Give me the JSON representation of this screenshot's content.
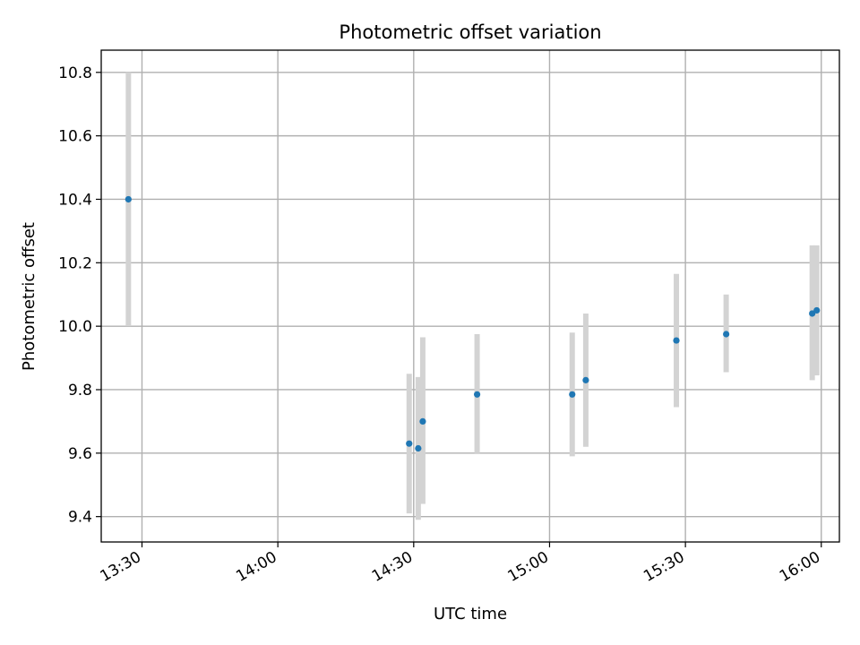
{
  "chart_data": {
    "type": "scatter",
    "title": "Photometric offset variation",
    "xlabel": "UTC time",
    "ylabel": "Photometric offset",
    "grid": true,
    "x_axis_type": "time",
    "xlim": [
      "13:21",
      "16:04"
    ],
    "ylim": [
      9.32,
      10.87
    ],
    "x_ticks": [
      "13:30",
      "14:00",
      "14:30",
      "15:00",
      "15:30",
      "16:00"
    ],
    "y_ticks": [
      "9.4",
      "9.6",
      "9.8",
      "10.0",
      "10.2",
      "10.4",
      "10.6",
      "10.8"
    ],
    "series": [
      {
        "marker_color": "#1f77b4",
        "errorbar_color": "#d3d3d3",
        "points": [
          {
            "x": "13:27",
            "y": 10.4,
            "y_low": 10.0,
            "y_high": 10.8
          },
          {
            "x": "14:29",
            "y": 9.63,
            "y_low": 9.41,
            "y_high": 9.85
          },
          {
            "x": "14:31",
            "y": 9.615,
            "y_low": 9.39,
            "y_high": 9.84
          },
          {
            "x": "14:32",
            "y": 9.7,
            "y_low": 9.44,
            "y_high": 9.965
          },
          {
            "x": "14:44",
            "y": 9.785,
            "y_low": 9.6,
            "y_high": 9.975
          },
          {
            "x": "15:05",
            "y": 9.785,
            "y_low": 9.59,
            "y_high": 9.98
          },
          {
            "x": "15:08",
            "y": 9.83,
            "y_low": 9.62,
            "y_high": 10.04
          },
          {
            "x": "15:28",
            "y": 9.955,
            "y_low": 9.745,
            "y_high": 10.165
          },
          {
            "x": "15:39",
            "y": 9.975,
            "y_low": 9.855,
            "y_high": 10.1
          },
          {
            "x": "15:58",
            "y": 10.04,
            "y_low": 9.83,
            "y_high": 10.255
          },
          {
            "x": "15:59",
            "y": 10.05,
            "y_low": 9.845,
            "y_high": 10.255
          }
        ]
      }
    ]
  }
}
